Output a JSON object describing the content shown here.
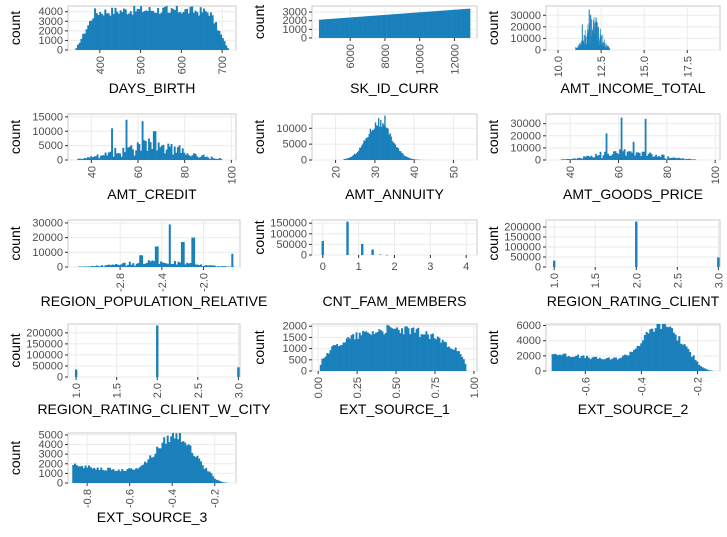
{
  "colors": {
    "bar": "#1a80bb",
    "grid": "#ebebeb",
    "panel_border": "#c8c8c8",
    "tick_text": "#4d4d4d",
    "label_text": "#000000"
  },
  "chart_data": [
    {
      "type": "bar",
      "title": "",
      "xlabel": "DAYS_BIRTH",
      "ylabel": "count",
      "xlim": [
        322,
        734
      ],
      "ylim": [
        0,
        4600
      ],
      "xticks": [
        {
          "v": 400,
          "label": "400"
        },
        {
          "v": 500,
          "label": "500"
        },
        {
          "v": 600,
          "label": "600"
        },
        {
          "v": 700,
          "label": "700"
        }
      ],
      "yticks": [
        {
          "v": 0,
          "label": "0"
        },
        {
          "v": 1000,
          "label": "1000"
        },
        {
          "v": 2000,
          "label": "2000"
        },
        {
          "v": 3000,
          "label": "3000"
        },
        {
          "v": 4000,
          "label": "4000"
        }
      ],
      "rotate_x": true,
      "grid": true,
      "bins": {
        "min": 340,
        "max": 716,
        "shape": "plateau",
        "peak": 4200,
        "spikes": [
          [
            570,
            3900
          ]
        ]
      }
    },
    {
      "type": "bar",
      "title": "",
      "xlabel": "SK_ID_CURR",
      "ylabel": "count",
      "xlim": [
        3800,
        13300
      ],
      "ylim": [
        0,
        3700
      ],
      "xticks": [
        {
          "v": 6000,
          "label": "6000"
        },
        {
          "v": 8000,
          "label": "8000"
        },
        {
          "v": 10000,
          "label": "10000"
        },
        {
          "v": 12000,
          "label": "12000"
        }
      ],
      "yticks": [
        {
          "v": 0,
          "label": "0"
        },
        {
          "v": 1000,
          "label": "1000"
        },
        {
          "v": 2000,
          "label": "2000"
        },
        {
          "v": 3000,
          "label": "3000"
        }
      ],
      "rotate_x": true,
      "grid": true,
      "bins": {
        "min": 4200,
        "max": 12900,
        "shape": "rising",
        "peak": 3400
      }
    },
    {
      "type": "bar",
      "title": "",
      "xlabel": "AMT_INCOME_TOTAL",
      "ylabel": "count",
      "xlim": [
        9.3,
        19.4
      ],
      "ylim": [
        0,
        38000
      ],
      "xticks": [
        {
          "v": 10.0,
          "label": "10.0"
        },
        {
          "v": 12.5,
          "label": "12.5"
        },
        {
          "v": 15.0,
          "label": "15.0"
        },
        {
          "v": 17.5,
          "label": "17.5"
        }
      ],
      "yticks": [
        {
          "v": 0,
          "label": "0"
        },
        {
          "v": 10000,
          "label": "10000"
        },
        {
          "v": 20000,
          "label": "20000"
        },
        {
          "v": 30000,
          "label": "30000"
        }
      ],
      "rotate_x": true,
      "grid": true,
      "bins": {
        "min": 11.0,
        "max": 13.0,
        "shape": "spiky",
        "peak": 26000,
        "spikes": [
          [
            11.8,
            35000
          ],
          [
            11.9,
            30000
          ],
          [
            11.4,
            22000
          ],
          [
            12.2,
            28000
          ]
        ]
      }
    },
    {
      "type": "bar",
      "title": "",
      "xlabel": "AMT_CREDIT",
      "ylabel": "count",
      "xlim": [
        30,
        102
      ],
      "ylim": [
        0,
        16000
      ],
      "xticks": [
        {
          "v": 40,
          "label": "40"
        },
        {
          "v": 60,
          "label": "60"
        },
        {
          "v": 80,
          "label": "80"
        },
        {
          "v": 100,
          "label": "100"
        }
      ],
      "yticks": [
        {
          "v": 0,
          "label": "0"
        },
        {
          "v": 5000,
          "label": "5000"
        },
        {
          "v": 10000,
          "label": "10000"
        },
        {
          "v": 15000,
          "label": "15000"
        }
      ],
      "rotate_x": true,
      "grid": true,
      "bins": {
        "min": 34,
        "max": 96,
        "shape": "spiky",
        "peak": 6500,
        "spikes": [
          [
            55,
            14000
          ],
          [
            62,
            13500
          ],
          [
            49,
            11000
          ],
          [
            67,
            10000
          ]
        ]
      }
    },
    {
      "type": "bar",
      "title": "",
      "xlabel": "AMT_ANNUITY",
      "ylabel": "count",
      "xlim": [
        14,
        56
      ],
      "ylim": [
        0,
        14500
      ],
      "xticks": [
        {
          "v": 20,
          "label": "20"
        },
        {
          "v": 30,
          "label": "30"
        },
        {
          "v": 40,
          "label": "40"
        },
        {
          "v": 50,
          "label": "50"
        }
      ],
      "yticks": [
        {
          "v": 0,
          "label": "0"
        },
        {
          "v": 5000,
          "label": "5000"
        },
        {
          "v": 10000,
          "label": "10000"
        }
      ],
      "rotate_x": true,
      "grid": true,
      "bins": {
        "min": 22,
        "max": 46,
        "shape": "bell",
        "peak": 11500,
        "center": 31,
        "spread": 3.2,
        "spikes": [
          [
            32.5,
            14000
          ],
          [
            31,
            13200
          ]
        ]
      }
    },
    {
      "type": "bar",
      "title": "",
      "xlabel": "AMT_GOODS_PRICE",
      "ylabel": "count",
      "xlim": [
        30,
        102
      ],
      "ylim": [
        0,
        38000
      ],
      "xticks": [
        {
          "v": 40,
          "label": "40"
        },
        {
          "v": 60,
          "label": "60"
        },
        {
          "v": 80,
          "label": "80"
        },
        {
          "v": 100,
          "label": "100"
        }
      ],
      "yticks": [
        {
          "v": 0,
          "label": "0"
        },
        {
          "v": 10000,
          "label": "10000"
        },
        {
          "v": 20000,
          "label": "20000"
        },
        {
          "v": 30000,
          "label": "30000"
        }
      ],
      "rotate_x": true,
      "grid": true,
      "bins": {
        "min": 36,
        "max": 92,
        "shape": "spiky",
        "peak": 8000,
        "spikes": [
          [
            61,
            35000
          ],
          [
            71,
            34000
          ],
          [
            55,
            22000
          ],
          [
            66,
            15000
          ]
        ]
      }
    },
    {
      "type": "bar",
      "title": "",
      "xlabel": "REGION_POPULATION_RELATIVE",
      "ylabel": "count",
      "xlim": [
        -3.3,
        -1.65
      ],
      "ylim": [
        0,
        32000
      ],
      "xticks": [
        {
          "v": -2.8,
          "label": "-2.8"
        },
        {
          "v": -2.4,
          "label": "-2.4"
        },
        {
          "v": -2.0,
          "label": "-2.0"
        }
      ],
      "yticks": [
        {
          "v": 0,
          "label": "0"
        },
        {
          "v": 10000,
          "label": "10000"
        },
        {
          "v": 20000,
          "label": "20000"
        },
        {
          "v": 30000,
          "label": "30000"
        }
      ],
      "rotate_x": true,
      "grid": true,
      "bins": {
        "min": -3.2,
        "max": -1.7,
        "shape": "spiky",
        "peak": 4000,
        "spikes": [
          [
            -2.33,
            29000
          ],
          [
            -2.1,
            20000
          ],
          [
            -2.2,
            17000
          ],
          [
            -2.45,
            14000
          ],
          [
            -1.73,
            9000
          ],
          [
            -2.6,
            8000
          ]
        ]
      }
    },
    {
      "type": "bar",
      "title": "",
      "xlabel": "CNT_FAM_MEMBERS",
      "ylabel": "count",
      "xlim": [
        -0.3,
        4.3
      ],
      "ylim": [
        0,
        165000
      ],
      "xticks": [
        {
          "v": 0,
          "label": "0"
        },
        {
          "v": 1,
          "label": "1"
        },
        {
          "v": 2,
          "label": "2"
        },
        {
          "v": 3,
          "label": "3"
        },
        {
          "v": 4,
          "label": "4"
        }
      ],
      "yticks": [
        {
          "v": 0,
          "label": "0"
        },
        {
          "v": 50000,
          "label": "50000"
        },
        {
          "v": 100000,
          "label": "100000"
        },
        {
          "v": 150000,
          "label": "150000"
        }
      ],
      "rotate_x": false,
      "grid": true,
      "bins": {
        "min": -0.1,
        "max": 4.1,
        "shape": "discrete",
        "bars": [
          [
            0,
            66000
          ],
          [
            0.69,
            157000
          ],
          [
            1.1,
            52000
          ],
          [
            1.39,
            26000
          ],
          [
            1.61,
            2500
          ],
          [
            1.79,
            600
          ]
        ]
      }
    },
    {
      "type": "bar",
      "title": "",
      "xlabel": "REGION_RATING_CLIENT",
      "ylabel": "count",
      "xlim": [
        0.9,
        3.02
      ],
      "ylim": [
        0,
        235000
      ],
      "xticks": [
        {
          "v": 1.0,
          "label": "1.0"
        },
        {
          "v": 1.5,
          "label": "1.5"
        },
        {
          "v": 2.0,
          "label": "2.0"
        },
        {
          "v": 2.5,
          "label": "2.5"
        },
        {
          "v": 3.0,
          "label": "3.0"
        }
      ],
      "yticks": [
        {
          "v": 0,
          "label": "0"
        },
        {
          "v": 50000,
          "label": "50000"
        },
        {
          "v": 100000,
          "label": "100000"
        },
        {
          "v": 150000,
          "label": "150000"
        },
        {
          "v": 200000,
          "label": "200000"
        }
      ],
      "rotate_x": true,
      "grid": true,
      "bins": {
        "min": 0.9,
        "max": 3.0,
        "shape": "discrete",
        "bars": [
          [
            1.0,
            32000
          ],
          [
            2.0,
            227000
          ],
          [
            3.0,
            48000
          ]
        ]
      }
    },
    {
      "type": "bar",
      "title": "",
      "xlabel": "REGION_RATING_CLIENT_W_CITY",
      "ylabel": "count",
      "xlim": [
        0.9,
        3.02
      ],
      "ylim": [
        0,
        240000
      ],
      "xticks": [
        {
          "v": 1.0,
          "label": "1.0"
        },
        {
          "v": 1.5,
          "label": "1.5"
        },
        {
          "v": 2.0,
          "label": "2.0"
        },
        {
          "v": 2.5,
          "label": "2.5"
        },
        {
          "v": 3.0,
          "label": "3.0"
        }
      ],
      "yticks": [
        {
          "v": 0,
          "label": "0"
        },
        {
          "v": 50000,
          "label": "50000"
        },
        {
          "v": 100000,
          "label": "100000"
        },
        {
          "v": 150000,
          "label": "150000"
        },
        {
          "v": 200000,
          "label": "200000"
        }
      ],
      "rotate_x": true,
      "grid": true,
      "bins": {
        "min": 0.9,
        "max": 3.0,
        "shape": "discrete",
        "bars": [
          [
            1.0,
            34000
          ],
          [
            2.0,
            233000
          ],
          [
            3.0,
            44000
          ]
        ]
      }
    },
    {
      "type": "bar",
      "title": "",
      "xlabel": "EXT_SOURCE_1",
      "ylabel": "count",
      "xlim": [
        -0.04,
        1.02
      ],
      "ylim": [
        0,
        2100
      ],
      "xticks": [
        {
          "v": 0.0,
          "label": "0.00"
        },
        {
          "v": 0.25,
          "label": "0.25"
        },
        {
          "v": 0.5,
          "label": "0.50"
        },
        {
          "v": 0.75,
          "label": "0.75"
        },
        {
          "v": 1.0,
          "label": "1.00"
        }
      ],
      "yticks": [
        {
          "v": 0,
          "label": "0"
        },
        {
          "v": 500,
          "label": "500"
        },
        {
          "v": 1000,
          "label": "1000"
        },
        {
          "v": 1500,
          "label": "1500"
        },
        {
          "v": 2000,
          "label": "2000"
        }
      ],
      "rotate_x": true,
      "grid": true,
      "bins": {
        "min": 0.01,
        "max": 0.95,
        "shape": "dome",
        "peak": 1850
      }
    },
    {
      "type": "bar",
      "title": "",
      "xlabel": "EXT_SOURCE_2",
      "ylabel": "count",
      "xlim": [
        -0.74,
        -0.12
      ],
      "ylim": [
        0,
        6200
      ],
      "xticks": [
        {
          "v": -0.6,
          "label": "-0.6"
        },
        {
          "v": -0.4,
          "label": "-0.4"
        },
        {
          "v": -0.2,
          "label": "-0.2"
        }
      ],
      "yticks": [
        {
          "v": 0,
          "label": "0"
        },
        {
          "v": 2000,
          "label": "2000"
        },
        {
          "v": 4000,
          "label": "4000"
        },
        {
          "v": 6000,
          "label": "6000"
        }
      ],
      "rotate_x": true,
      "grid": true,
      "bins": {
        "min": -0.72,
        "max": -0.14,
        "shape": "skew",
        "peak": 5500,
        "center": -0.32,
        "spread": 0.07
      }
    },
    {
      "type": "bar",
      "title": "",
      "xlabel": "EXT_SOURCE_3",
      "ylabel": "count",
      "xlim": [
        -0.89,
        -0.1
      ],
      "ylim": [
        0,
        5200
      ],
      "xticks": [
        {
          "v": -0.8,
          "label": "-0.8"
        },
        {
          "v": -0.6,
          "label": "-0.6"
        },
        {
          "v": -0.4,
          "label": "-0.4"
        },
        {
          "v": -0.2,
          "label": "-0.2"
        }
      ],
      "yticks": [
        {
          "v": 0,
          "label": "0"
        },
        {
          "v": 1000,
          "label": "1000"
        },
        {
          "v": 2000,
          "label": "2000"
        },
        {
          "v": 3000,
          "label": "3000"
        },
        {
          "v": 4000,
          "label": "4000"
        },
        {
          "v": 5000,
          "label": "5000"
        }
      ],
      "rotate_x": true,
      "grid": true,
      "bins": {
        "min": -0.87,
        "max": -0.13,
        "shape": "skew",
        "peak": 4400,
        "center": -0.38,
        "spread": 0.09
      }
    }
  ]
}
